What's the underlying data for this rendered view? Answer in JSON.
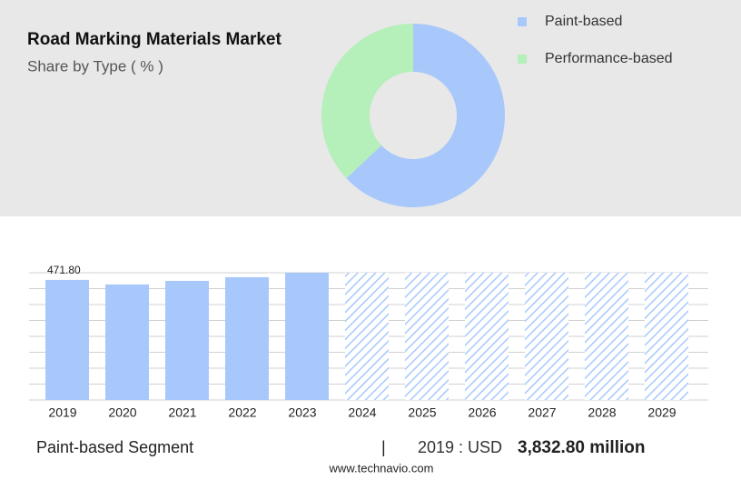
{
  "chart_data": [
    {
      "type": "pie",
      "title": "Road Marking Materials Market",
      "subtitle": "Share by Type ( % )",
      "categories": [
        "Paint-based",
        "Performance-based"
      ],
      "values": [
        63,
        37
      ],
      "colors": [
        "#a8c8fc",
        "#b5efba"
      ],
      "legend": "right"
    },
    {
      "type": "bar",
      "categories": [
        "2019",
        "2020",
        "2021",
        "2022",
        "2023",
        "2024",
        "2025",
        "2026",
        "2027",
        "2028",
        "2029"
      ],
      "values": [
        471.8,
        453.9,
        468,
        482.5,
        500,
        null,
        null,
        null,
        null,
        null,
        null
      ],
      "value_labels": [
        "471.80",
        null,
        null,
        null,
        null,
        null,
        null,
        null,
        null,
        null,
        null
      ],
      "color": "#a8c8fc",
      "forecast_pattern": "hatched",
      "ylim": [
        0,
        500
      ],
      "yticks": [
        0,
        62.5,
        125,
        187.5,
        250,
        312.5,
        375,
        437.5,
        500
      ],
      "grid": true
    }
  ],
  "footer": {
    "segment": "Paint-based Segment",
    "separator": "|",
    "year_label": "2019 : USD",
    "amount": "3,832.80 million",
    "source": "www.technavio.com"
  }
}
